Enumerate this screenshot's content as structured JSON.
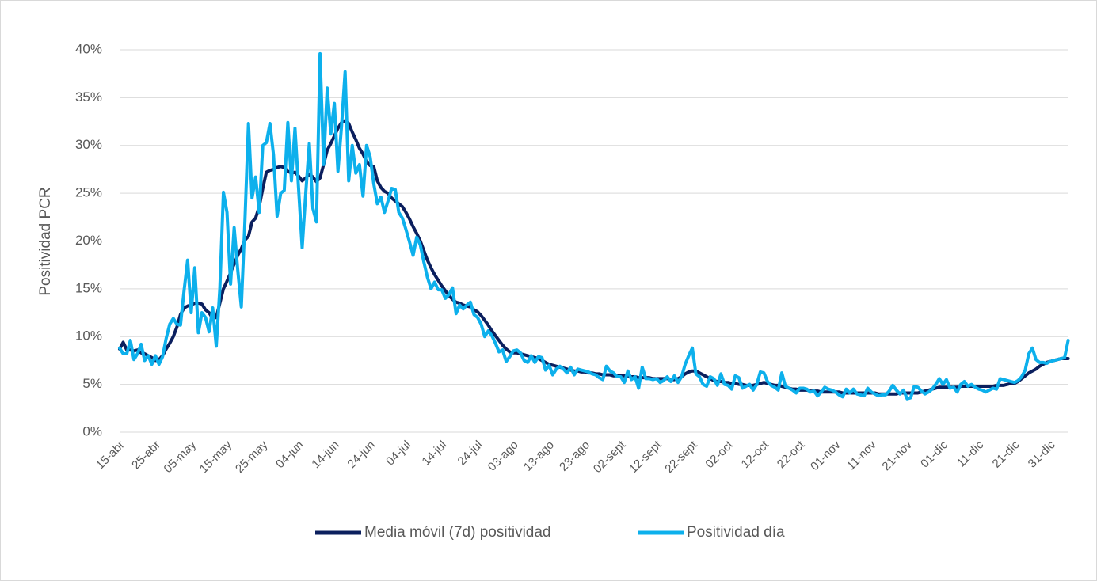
{
  "chart_data": {
    "type": "line",
    "y_label": "Positividad PCR",
    "legend": "bottom",
    "grid": true,
    "ylim": [
      0,
      40
    ],
    "yticks": [
      {
        "value": 0,
        "label": "0%"
      },
      {
        "value": 5,
        "label": "5%"
      },
      {
        "value": 10,
        "label": "10%"
      },
      {
        "value": 15,
        "label": "15%"
      },
      {
        "value": 20,
        "label": "20%"
      },
      {
        "value": 25,
        "label": "25%"
      },
      {
        "value": 30,
        "label": "30%"
      },
      {
        "value": 35,
        "label": "35%"
      },
      {
        "value": 40,
        "label": "40%"
      }
    ],
    "categories": [
      "15-abr",
      null,
      null,
      null,
      null,
      null,
      null,
      null,
      null,
      null,
      "25-abr",
      null,
      null,
      null,
      null,
      null,
      null,
      null,
      null,
      null,
      "05-may",
      null,
      null,
      null,
      null,
      null,
      null,
      null,
      null,
      null,
      "15-may",
      null,
      null,
      null,
      null,
      null,
      null,
      null,
      null,
      null,
      "25-may",
      null,
      null,
      null,
      null,
      null,
      null,
      null,
      null,
      null,
      "04-jun",
      null,
      null,
      null,
      null,
      null,
      null,
      null,
      null,
      null,
      "14-jun",
      null,
      null,
      null,
      null,
      null,
      null,
      null,
      null,
      null,
      "24-jun",
      null,
      null,
      null,
      null,
      null,
      null,
      null,
      null,
      null,
      "04-jul",
      null,
      null,
      null,
      null,
      null,
      null,
      null,
      null,
      null,
      "14-jul",
      null,
      null,
      null,
      null,
      null,
      null,
      null,
      null,
      null,
      "24-jul",
      null,
      null,
      null,
      null,
      null,
      null,
      null,
      null,
      null,
      "03-ago",
      null,
      null,
      null,
      null,
      null,
      null,
      null,
      null,
      null,
      "13-ago",
      null,
      null,
      null,
      null,
      null,
      null,
      null,
      null,
      null,
      "23-ago",
      null,
      null,
      null,
      null,
      null,
      null,
      null,
      null,
      null,
      "02-sept",
      null,
      null,
      null,
      null,
      null,
      null,
      null,
      null,
      null,
      "12-sept",
      null,
      null,
      null,
      null,
      null,
      null,
      null,
      null,
      null,
      "22-sept",
      null,
      null,
      null,
      null,
      null,
      null,
      null,
      null,
      null,
      "02-oct",
      null,
      null,
      null,
      null,
      null,
      null,
      null,
      null,
      null,
      "12-oct",
      null,
      null,
      null,
      null,
      null,
      null,
      null,
      null,
      null,
      "22-oct",
      null,
      null,
      null,
      null,
      null,
      null,
      null,
      null,
      null,
      "01-nov",
      null,
      null,
      null,
      null,
      null,
      null,
      null,
      null,
      null,
      "11-nov",
      null,
      null,
      null,
      null,
      null,
      null,
      null,
      null,
      null,
      "21-nov",
      null,
      null,
      null,
      null,
      null,
      null,
      null,
      null,
      null,
      "01-dic",
      null,
      null,
      null,
      null,
      null,
      null,
      null,
      null,
      null,
      "11-dic",
      null,
      null,
      null,
      null,
      null,
      null,
      null,
      null,
      null,
      "21-dic",
      null,
      null,
      null,
      null,
      null,
      null,
      null,
      null,
      null,
      "31-dic",
      null,
      null,
      null,
      null,
      null
    ],
    "series": [
      {
        "name": "Media móvil (7d) positividad",
        "color": "#0b1f5e",
        "values": [
          8.7,
          9.4,
          8.6,
          8.6,
          8.5,
          8.6,
          8.3,
          8.2,
          8.0,
          7.8,
          7.5,
          7.6,
          8.0,
          8.7,
          9.3,
          10.0,
          11.0,
          12.3,
          13.0,
          13.2,
          13.3,
          13.5,
          13.5,
          13.4,
          12.8,
          12.5,
          11.9,
          12.0,
          13.5,
          15.0,
          15.8,
          16.7,
          17.6,
          18.5,
          19.2,
          20.1,
          20.5,
          22.0,
          22.4,
          23.6,
          25.5,
          27.2,
          27.4,
          27.5,
          27.7,
          27.8,
          27.7,
          27.3,
          27.1,
          27.2,
          26.8,
          26.3,
          26.6,
          27.0,
          26.7,
          26.2,
          26.6,
          28.0,
          29.5,
          30.2,
          31.0,
          31.8,
          32.4,
          32.6,
          32.3,
          31.4,
          30.6,
          29.7,
          29.1,
          28.3,
          27.9,
          27.8,
          26.3,
          25.6,
          25.2,
          25.0,
          24.5,
          24.2,
          23.9,
          23.6,
          23.0,
          22.3,
          21.5,
          20.8,
          20.0,
          19.0,
          18.0,
          17.2,
          16.5,
          15.9,
          15.3,
          14.8,
          14.3,
          13.9,
          13.6,
          13.5,
          13.3,
          13.2,
          13.1,
          12.8,
          12.6,
          12.2,
          11.7,
          11.2,
          10.6,
          10.1,
          9.6,
          9.1,
          8.7,
          8.4,
          8.3,
          8.3,
          8.2,
          8.1,
          8.0,
          7.9,
          7.8,
          7.7,
          7.5,
          7.3,
          7.1,
          7.0,
          6.9,
          6.8,
          6.7,
          6.6,
          6.5,
          6.4,
          6.4,
          6.3,
          6.3,
          6.2,
          6.2,
          6.1,
          6.1,
          6.0,
          6.0,
          6.0,
          5.9,
          5.9,
          5.9,
          5.9,
          5.8,
          5.8,
          5.8,
          5.7,
          5.7,
          5.7,
          5.7,
          5.6,
          5.6,
          5.6,
          5.6,
          5.6,
          5.5,
          5.5,
          5.6,
          5.8,
          6.1,
          6.3,
          6.4,
          6.4,
          6.2,
          6.0,
          5.8,
          5.6,
          5.4,
          5.3,
          5.3,
          5.2,
          5.2,
          5.1,
          5.1,
          5.0,
          5.0,
          4.9,
          4.9,
          4.9,
          5.0,
          5.1,
          5.2,
          5.1,
          5.0,
          4.9,
          4.9,
          4.8,
          4.7,
          4.6,
          4.5,
          4.5,
          4.4,
          4.4,
          4.4,
          4.3,
          4.3,
          4.3,
          4.2,
          4.2,
          4.2,
          4.2,
          4.2,
          4.2,
          4.1,
          4.1,
          4.1,
          4.1,
          4.1,
          4.1,
          4.1,
          4.1,
          4.1,
          4.1,
          4.0,
          4.0,
          4.0,
          4.0,
          4.0,
          4.0,
          4.1,
          4.1,
          4.1,
          4.1,
          4.1,
          4.1,
          4.2,
          4.3,
          4.4,
          4.5,
          4.6,
          4.7,
          4.7,
          4.7,
          4.7,
          4.7,
          4.7,
          4.8,
          4.8,
          4.8,
          4.8,
          4.8,
          4.8,
          4.8,
          4.8,
          4.8,
          4.8,
          4.9,
          4.9,
          4.9,
          5.0,
          5.1,
          5.1,
          5.3,
          5.6,
          5.9,
          6.2,
          6.4,
          6.6,
          6.9,
          7.1,
          7.3,
          7.4,
          7.5,
          7.6,
          7.7,
          7.7,
          7.7
        ]
      },
      {
        "name": "Positividad día",
        "color": "#0db0ec",
        "values": [
          8.8,
          8.2,
          8.2,
          9.6,
          7.6,
          8.2,
          9.2,
          7.5,
          8.0,
          7.1,
          8.0,
          7.1,
          7.9,
          9.8,
          11.3,
          11.9,
          11.3,
          11.2,
          14.8,
          18.0,
          12.5,
          17.2,
          10.4,
          12.5,
          12.0,
          10.5,
          13.0,
          9.0,
          15.0,
          25.1,
          23.0,
          15.5,
          21.4,
          17.0,
          13.1,
          22.0,
          32.3,
          24.5,
          26.7,
          23.0,
          30.0,
          30.3,
          32.3,
          29.0,
          22.6,
          25.0,
          25.3,
          32.4,
          26.3,
          31.8,
          25.5,
          19.3,
          25.0,
          30.2,
          23.4,
          22.0,
          39.6,
          28.0,
          36.0,
          31.2,
          34.4,
          27.3,
          32.0,
          37.7,
          26.3,
          30.0,
          27.1,
          28.0,
          24.7,
          30.0,
          28.8,
          26.0,
          23.9,
          24.6,
          23.0,
          24.2,
          25.5,
          25.4,
          23.0,
          22.4,
          21.2,
          19.9,
          18.5,
          20.4,
          19.6,
          17.8,
          16.2,
          15.0,
          15.7,
          14.9,
          14.9,
          14.0,
          14.4,
          15.1,
          12.4,
          13.3,
          12.9,
          13.3,
          13.6,
          12.3,
          12.0,
          11.3,
          10.0,
          10.6,
          10.1,
          9.3,
          8.4,
          8.6,
          7.4,
          7.9,
          8.5,
          8.6,
          8.3,
          7.5,
          7.3,
          8.0,
          7.3,
          7.9,
          7.8,
          6.5,
          7.0,
          6.0,
          6.6,
          6.9,
          6.6,
          6.2,
          6.8,
          6.0,
          6.6,
          6.5,
          6.4,
          6.3,
          6.1,
          6.0,
          5.7,
          5.5,
          6.9,
          6.4,
          6.2,
          5.8,
          5.8,
          5.2,
          6.4,
          5.5,
          5.8,
          4.6,
          6.8,
          5.6,
          5.6,
          5.5,
          5.6,
          5.2,
          5.4,
          5.8,
          5.3,
          5.9,
          5.2,
          5.8,
          7.1,
          8.0,
          8.8,
          6.1,
          5.8,
          5.0,
          4.8,
          5.8,
          5.6,
          4.9,
          6.1,
          5.0,
          4.9,
          4.5,
          5.9,
          5.7,
          4.6,
          4.8,
          5.0,
          4.4,
          5.0,
          6.3,
          6.2,
          5.3,
          4.9,
          4.7,
          4.4,
          6.2,
          4.8,
          4.6,
          4.4,
          4.1,
          4.6,
          4.6,
          4.5,
          4.2,
          4.3,
          3.8,
          4.2,
          4.7,
          4.5,
          4.4,
          4.2,
          3.9,
          3.7,
          4.5,
          4.1,
          4.5,
          4.0,
          3.9,
          3.8,
          4.6,
          4.2,
          4.0,
          3.8,
          3.9,
          3.9,
          4.3,
          4.9,
          4.4,
          4.0,
          4.4,
          3.5,
          3.6,
          4.8,
          4.7,
          4.3,
          4.0,
          4.2,
          4.5,
          5.0,
          5.6,
          5.0,
          5.5,
          4.6,
          4.7,
          4.2,
          5.0,
          5.3,
          4.8,
          5.0,
          4.7,
          4.5,
          4.4,
          4.2,
          4.4,
          4.6,
          4.5,
          5.6,
          5.5,
          5.4,
          5.3,
          5.2,
          5.4,
          5.8,
          6.5,
          8.2,
          8.8,
          7.6,
          7.3,
          7.3,
          7.2,
          7.4,
          7.5,
          7.6,
          7.7,
          7.8,
          9.6
        ]
      }
    ]
  }
}
